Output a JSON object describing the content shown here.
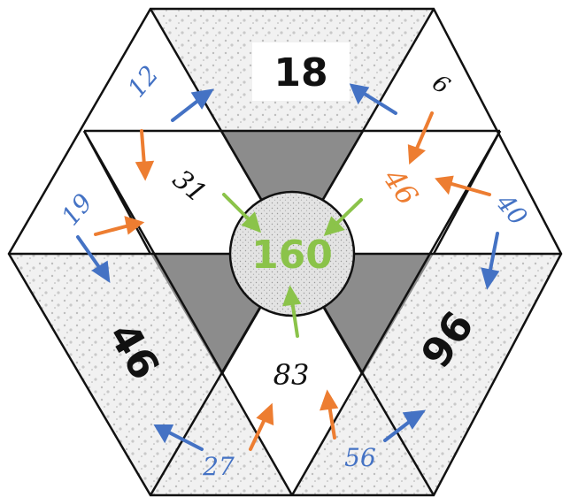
{
  "colors": {
    "black": "#111111",
    "blue": "#4472c4",
    "orange": "#ed7d31",
    "green": "#8bc34a",
    "gray": "#8c8c8c",
    "dot_fill": "#ececec"
  },
  "numbers": {
    "top_18": "18",
    "top_right_6": "6",
    "top_left_12": "12",
    "inner_31": "31",
    "inner_46": "46",
    "center_160": "160",
    "left_19": "19",
    "right_40": "40",
    "bottom_left_46": "46",
    "bottom_83": "83",
    "bottom_right_96": "96",
    "bottom_27": "27",
    "bottom_56": "56"
  }
}
